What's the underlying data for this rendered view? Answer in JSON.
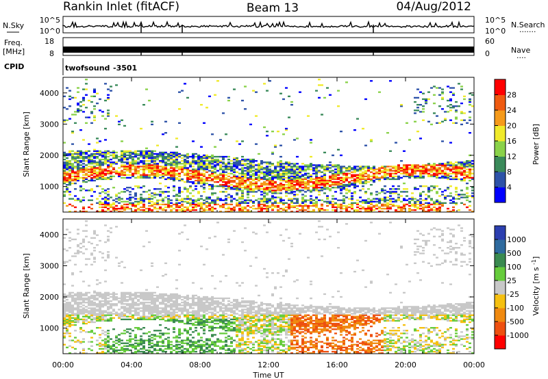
{
  "header": {
    "radar": "Rankin Inlet (fitACF)",
    "beam": "Beam 13",
    "date": "04/Aug/2012"
  },
  "nsky_panel": {
    "left_label": "N.Sky",
    "right_label": "N.Search",
    "right_legend": "·······",
    "left_ticks": [
      "10^5",
      "10^0"
    ],
    "right_ticks": [
      "10^5",
      "10^0"
    ]
  },
  "freq_panel": {
    "left_label_1": "Freq.",
    "left_label_2": "[MHz]",
    "right_label": "Nave",
    "right_legend": "····",
    "left_ticks": [
      "18",
      "8"
    ],
    "right_ticks": [
      "60",
      "0"
    ]
  },
  "cpid_panel": {
    "label": "CPID",
    "program": "twofsound",
    "cpid": "-3501"
  },
  "chart_data": [
    {
      "type": "heatmap",
      "name": "power",
      "ylabel": "Slant Range [km]",
      "ylim": [
        180,
        4500
      ],
      "yticks": [
        1000,
        2000,
        3000,
        4000
      ],
      "colorbar_label": "Power [dB]",
      "colorbar_ticks": [
        "4",
        "8",
        "12",
        "16",
        "20",
        "24",
        "28"
      ],
      "colorbar_colors": [
        "#0000ff",
        "#2d52a8",
        "#3a8a5a",
        "#8ad24a",
        "#f0ea2a",
        "#f59a1a",
        "#ef5a10",
        "#ff0000"
      ],
      "x_range_hours": [
        0,
        24
      ]
    },
    {
      "type": "heatmap",
      "name": "velocity",
      "ylabel": "Slant Range [km]",
      "ylim": [
        180,
        4500
      ],
      "yticks": [
        1000,
        2000,
        3000,
        4000
      ],
      "colorbar_label": "Velocity [m s^-1]",
      "colorbar_ticks": [
        "1000",
        "500",
        "100",
        "25",
        "-25",
        "-100",
        "-500",
        "-1000"
      ],
      "colorbar_colors": [
        "#2c3fb0",
        "#2e6a9e",
        "#3a8a50",
        "#66cc3c",
        "#c8c8c8",
        "#f5c010",
        "#f08a10",
        "#ee5010",
        "#ff0000"
      ],
      "xlabel": "Time UT",
      "xticks": [
        "00:00",
        "04:00",
        "08:00",
        "12:00",
        "16:00",
        "20:00",
        "00:00"
      ],
      "x_range_hours": [
        0,
        24
      ]
    }
  ]
}
